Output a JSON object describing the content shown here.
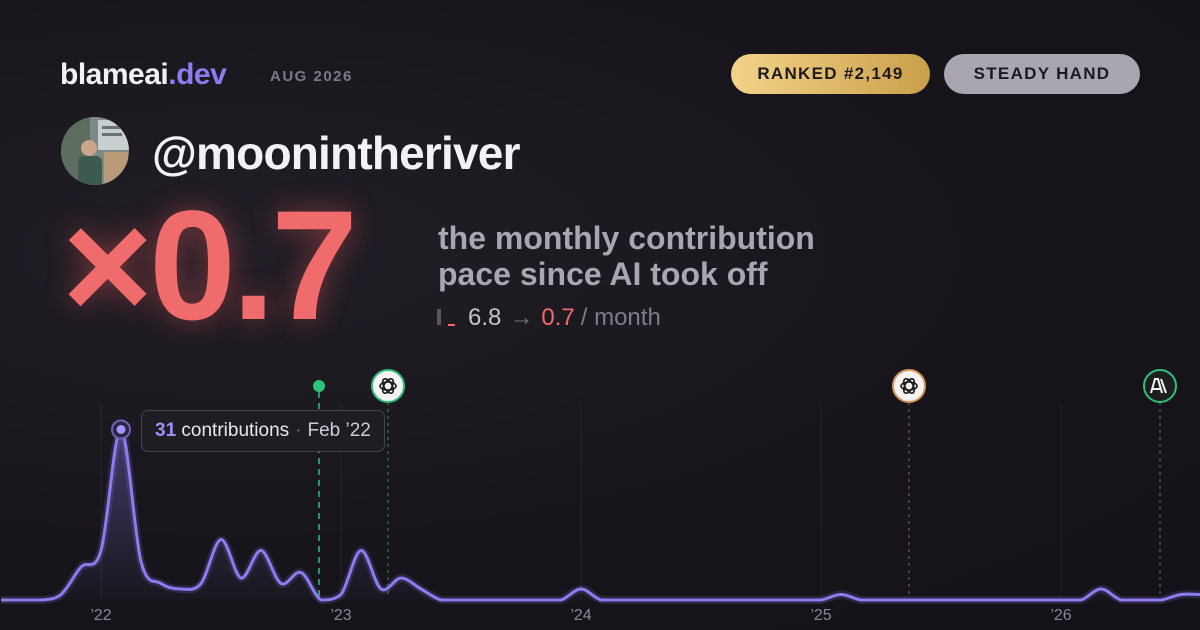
{
  "header": {
    "brand": "blameai",
    "brand_tld": ".dev",
    "date": "AUG 2026",
    "badges": [
      "RANKED #2,149",
      "STEADY HAND"
    ]
  },
  "profile": {
    "username": "@moonintheriver"
  },
  "hero": {
    "multiplier": "×0.7",
    "description": [
      "the monthly contribution",
      "pace since AI took off"
    ],
    "before": "6.8",
    "arrow": "→",
    "after": "0.7",
    "unit": "/ month"
  },
  "tooltip": {
    "unit": "contributions",
    "date": "Feb ’22"
  },
  "chart_data": {
    "type": "line",
    "color": "#8b7cf0",
    "categories": [
      null,
      null,
      null,
      null,
      null,
      "’22",
      null,
      null,
      null,
      null,
      null,
      null,
      null,
      null,
      null,
      null,
      null,
      "’23",
      null,
      null,
      null,
      null,
      null,
      null,
      null,
      null,
      null,
      null,
      null,
      "’24",
      null,
      null,
      null,
      null,
      null,
      null,
      null,
      null,
      null,
      null,
      null,
      "’25",
      null,
      null,
      null,
      null,
      null,
      null,
      null,
      null,
      null,
      null,
      null,
      "’26",
      null,
      null,
      null,
      null,
      null,
      null,
      null
    ],
    "values": [
      0,
      0,
      0,
      1,
      6,
      9,
      31,
      7,
      3,
      2,
      3,
      11,
      4,
      9,
      3,
      5,
      0,
      1,
      9,
      2,
      4,
      2,
      0,
      0,
      0,
      0,
      0,
      0,
      0,
      2,
      0,
      0,
      0,
      0,
      0,
      0,
      0,
      0,
      0,
      0,
      0,
      0,
      1,
      0,
      0,
      0,
      0,
      0,
      0,
      0,
      0,
      0,
      0,
      0,
      0,
      2,
      0,
      0,
      0,
      1,
      1
    ],
    "ylim": [
      0,
      35
    ]
  }
}
